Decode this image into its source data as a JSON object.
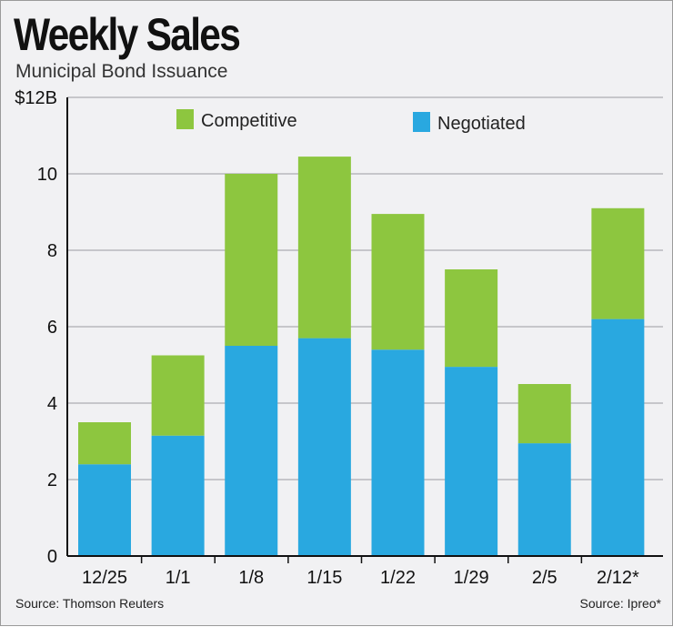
{
  "title": "Weekly Sales",
  "subtitle": "Municipal Bond Issuance",
  "source_left": "Source: Thomson Reuters",
  "source_right": "Source: Ipreo*",
  "colors": {
    "Competitive": "#8dc63f",
    "Negotiated": "#29a8e0"
  },
  "chart_data": {
    "type": "bar",
    "stacked": true,
    "categories": [
      "12/25",
      "1/1",
      "1/8",
      "1/15",
      "1/22",
      "1/29",
      "2/5",
      "2/12*"
    ],
    "series": [
      {
        "name": "Negotiated",
        "values": [
          2.4,
          3.15,
          5.5,
          5.7,
          5.4,
          4.95,
          2.95,
          6.2
        ]
      },
      {
        "name": "Competitive",
        "values": [
          1.1,
          2.1,
          4.5,
          4.75,
          3.55,
          2.55,
          1.55,
          2.9
        ]
      }
    ],
    "ylim": [
      0,
      12
    ],
    "yticks": [
      0,
      2,
      4,
      6,
      8,
      10,
      12
    ],
    "ytick_labels": [
      "0",
      "2",
      "4",
      "6",
      "8",
      "10",
      "$12B"
    ],
    "grid": true,
    "legend": [
      "Competitive",
      "Negotiated"
    ],
    "legend_placement": "top"
  }
}
